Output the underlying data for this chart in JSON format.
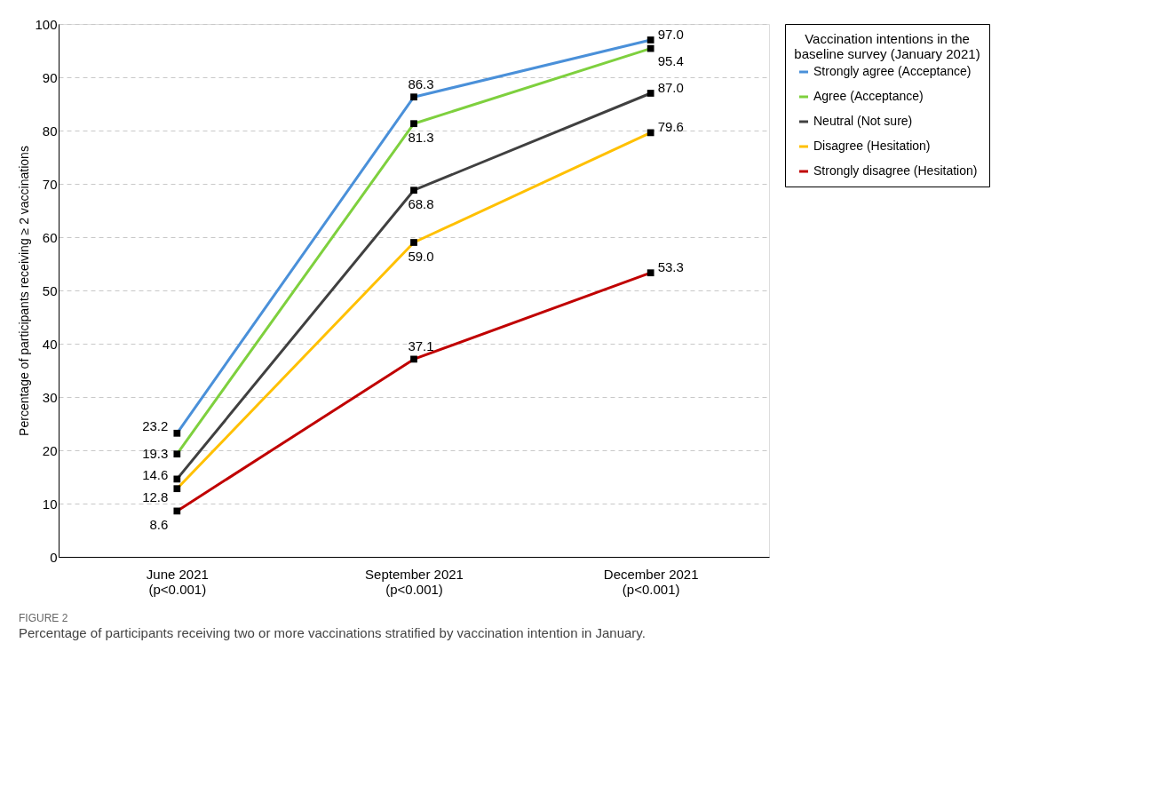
{
  "chart_data": {
    "type": "line",
    "ylabel": "Percentage of participants receiving ≥ 2 vaccinations",
    "legend_title": "Vaccination intentions in the\nbaseline survey (January 2021)",
    "categories": [
      "June 2021\n(p<0.001)",
      "September 2021\n(p<0.001)",
      "December 2021\n(p<0.001)"
    ],
    "series": [
      {
        "name": "Strongly agree (Acceptance)",
        "color": "#4a90d9",
        "values": [
          23.2,
          86.3,
          97.0
        ],
        "value_labels": [
          "23.2",
          "86.3",
          "97.0"
        ]
      },
      {
        "name": "Agree (Acceptance)",
        "color": "#7ed03e",
        "values": [
          19.3,
          81.3,
          95.4
        ],
        "value_labels": [
          "19.3",
          "81.3",
          "95.4"
        ]
      },
      {
        "name": "Neutral (Not sure)",
        "color": "#404040",
        "values": [
          14.6,
          68.8,
          87.0
        ],
        "value_labels": [
          "14.6",
          "68.8",
          "87.0"
        ]
      },
      {
        "name": "Disagree (Hesitation)",
        "color": "#ffc000",
        "values": [
          12.8,
          59.0,
          79.6
        ],
        "value_labels": [
          "12.8",
          "59.0",
          "79.6"
        ]
      },
      {
        "name": "Strongly disagree (Hesitation)",
        "color": "#c00000",
        "values": [
          8.6,
          37.1,
          53.3
        ],
        "value_labels": [
          "8.6",
          "37.1",
          "53.3"
        ]
      }
    ],
    "ylim": [
      0,
      100
    ],
    "yticks": [
      0,
      10,
      20,
      30,
      40,
      50,
      60,
      70,
      80,
      90,
      100
    ],
    "grid": "y",
    "legend": "right",
    "marker": "square",
    "line_style": "solid",
    "annotations": [
      "FIGURE 2",
      "Percentage of participants receiving two or more vaccinations stratified by vaccination intention in January."
    ]
  }
}
